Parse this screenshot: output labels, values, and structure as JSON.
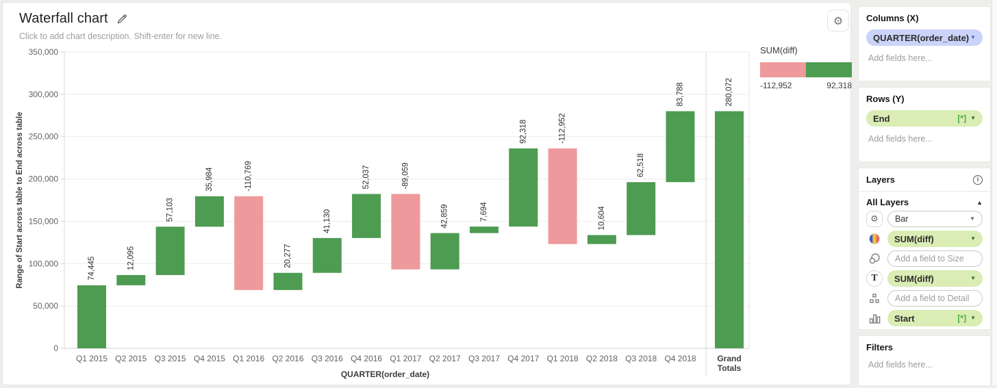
{
  "header": {
    "title": "Waterfall chart",
    "subtitle": "Click to add chart description. Shift-enter for new line."
  },
  "legend": {
    "title": "SUM(diff)",
    "min_label": "-112,952",
    "max_label": "92,318"
  },
  "chart_data": {
    "type": "bar",
    "subtype": "waterfall",
    "title": "Waterfall chart",
    "xlabel": "QUARTER(order_date)",
    "ylabel": "Range of Start across table to End across table",
    "ylim": [
      0,
      350000
    ],
    "ytick_step": 50000,
    "grid": true,
    "categories": [
      "Q1 2015",
      "Q2 2015",
      "Q3 2015",
      "Q4 2015",
      "Q1 2016",
      "Q2 2016",
      "Q3 2016",
      "Q4 2016",
      "Q1 2017",
      "Q2 2017",
      "Q3 2017",
      "Q4 2017",
      "Q1 2018",
      "Q2 2018",
      "Q3 2018",
      "Q4 2018"
    ],
    "values": [
      74445,
      12095,
      57103,
      35984,
      -110769,
      20277,
      41130,
      52037,
      -89059,
      42859,
      7694,
      92318,
      -112952,
      10604,
      62518,
      83788
    ],
    "labels": [
      "74,445",
      "12,095",
      "57,103",
      "35,984",
      "-110,769",
      "20,277",
      "41,130",
      "52,037",
      "-89,059",
      "42,859",
      "7,694",
      "92,318",
      "-112,952",
      "10,604",
      "62,518",
      "83,788"
    ],
    "grand_total": {
      "category_line1": "Grand",
      "category_line2": "Totals",
      "value": 280072,
      "label": "280,072"
    },
    "colors": {
      "positive": "#4e9b52",
      "negative": "#ee999b"
    }
  },
  "panel": {
    "columns": {
      "header": "Columns (X)",
      "pill": {
        "label": "QUARTER(order_date)"
      },
      "placeholder": "Add fields here..."
    },
    "rows": {
      "header": "Rows (Y)",
      "pill": {
        "label": "End",
        "badge": "[*]"
      },
      "placeholder": "Add fields here..."
    },
    "layers": {
      "header": "Layers",
      "group": "All Layers",
      "rows": [
        {
          "icon": "gear-icon",
          "control": "select",
          "value": "Bar"
        },
        {
          "icon": "color-icon",
          "control": "pill",
          "value": "SUM(diff)"
        },
        {
          "icon": "size-icon",
          "control": "input",
          "placeholder": "Add a field to Size"
        },
        {
          "icon": "text-icon",
          "control": "pill",
          "value": "SUM(diff)"
        },
        {
          "icon": "detail-icon",
          "control": "input",
          "placeholder": "Add a field to Detail"
        },
        {
          "icon": "bar-chart-icon",
          "control": "pill",
          "value": "Start",
          "badge": "[*]"
        }
      ]
    },
    "filters": {
      "header": "Filters",
      "placeholder": "Add fields here..."
    }
  }
}
